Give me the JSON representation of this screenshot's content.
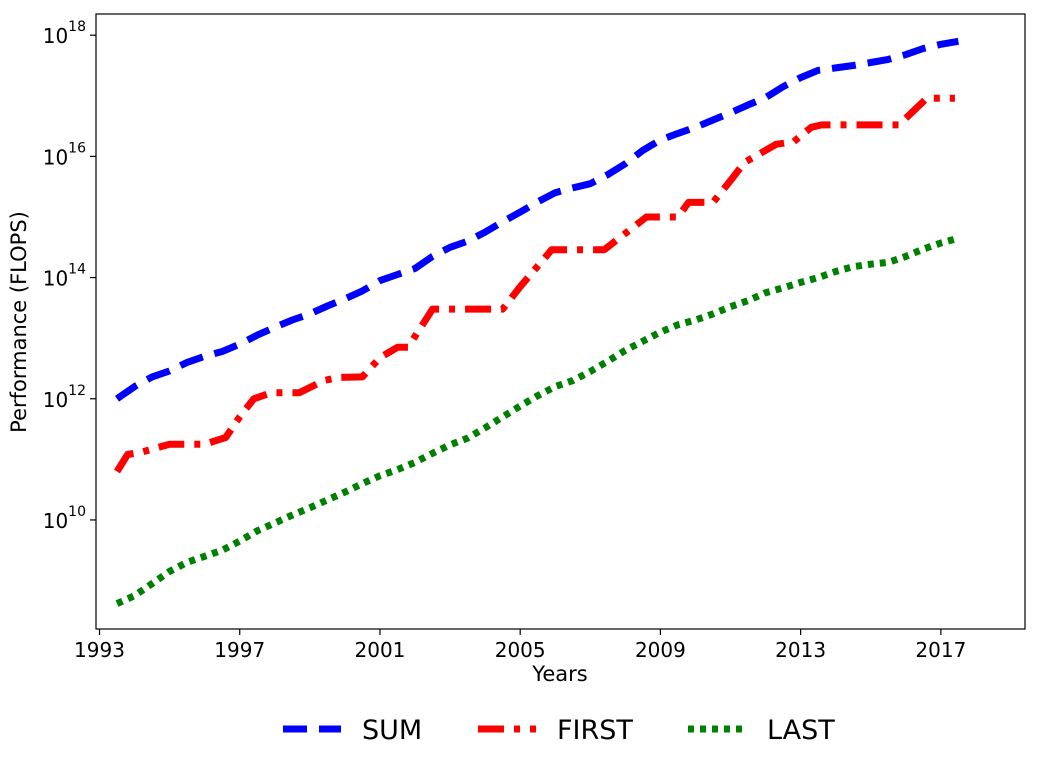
{
  "chart_data": {
    "type": "line",
    "xlabel": "Years",
    "ylabel": "Performance (FLOPS)",
    "y_scale": "log",
    "xlim": [
      1992.9,
      2019.4
    ],
    "ylim_exp": [
      8.2,
      18.35
    ],
    "x_ticks": [
      1993,
      1997,
      2001,
      2005,
      2009,
      2013,
      2017
    ],
    "y_ticks": [
      {
        "base": "10",
        "exp": "10",
        "value_exp": 10
      },
      {
        "base": "10",
        "exp": "12",
        "value_exp": 12
      },
      {
        "base": "10",
        "exp": "14",
        "value_exp": 14
      },
      {
        "base": "10",
        "exp": "16",
        "value_exp": 16
      },
      {
        "base": "10",
        "exp": "18",
        "value_exp": 18
      }
    ],
    "grid": false,
    "legend_position": "bottom-center",
    "series": [
      {
        "name": "SUM",
        "color": "#0000ff",
        "style": "dashed",
        "points_log10": [
          [
            1993.5,
            12.0
          ],
          [
            1994.0,
            12.2
          ],
          [
            1994.5,
            12.36
          ],
          [
            1995.0,
            12.46
          ],
          [
            1995.5,
            12.6
          ],
          [
            1996.0,
            12.7
          ],
          [
            1996.5,
            12.78
          ],
          [
            1997.0,
            12.9
          ],
          [
            1997.5,
            13.05
          ],
          [
            1998.0,
            13.18
          ],
          [
            1998.5,
            13.3
          ],
          [
            1999.0,
            13.4
          ],
          [
            1999.5,
            13.53
          ],
          [
            2000.0,
            13.65
          ],
          [
            2000.5,
            13.78
          ],
          [
            2001.0,
            13.95
          ],
          [
            2001.5,
            14.05
          ],
          [
            2002.0,
            14.15
          ],
          [
            2002.5,
            14.35
          ],
          [
            2003.0,
            14.5
          ],
          [
            2003.5,
            14.6
          ],
          [
            2004.0,
            14.75
          ],
          [
            2004.5,
            14.92
          ],
          [
            2005.0,
            15.08
          ],
          [
            2005.5,
            15.25
          ],
          [
            2006.0,
            15.4
          ],
          [
            2006.5,
            15.48
          ],
          [
            2007.0,
            15.55
          ],
          [
            2007.5,
            15.7
          ],
          [
            2008.0,
            15.88
          ],
          [
            2008.5,
            16.1
          ],
          [
            2009.0,
            16.27
          ],
          [
            2009.5,
            16.38
          ],
          [
            2010.0,
            16.48
          ],
          [
            2010.5,
            16.6
          ],
          [
            2011.0,
            16.72
          ],
          [
            2011.5,
            16.85
          ],
          [
            2012.0,
            16.97
          ],
          [
            2012.5,
            17.15
          ],
          [
            2013.0,
            17.3
          ],
          [
            2013.5,
            17.42
          ],
          [
            2014.0,
            17.46
          ],
          [
            2014.5,
            17.5
          ],
          [
            2015.0,
            17.55
          ],
          [
            2015.5,
            17.6
          ],
          [
            2016.0,
            17.68
          ],
          [
            2016.5,
            17.78
          ],
          [
            2017.0,
            17.85
          ],
          [
            2017.5,
            17.9
          ]
        ]
      },
      {
        "name": "FIRST",
        "color": "#ff0000",
        "style": "dashdot",
        "points_log10": [
          [
            1993.5,
            10.8
          ],
          [
            1993.8,
            11.08
          ],
          [
            1994.2,
            11.12
          ],
          [
            1995.0,
            11.25
          ],
          [
            1996.0,
            11.25
          ],
          [
            1996.6,
            11.36
          ],
          [
            1997.0,
            11.7
          ],
          [
            1997.4,
            12.0
          ],
          [
            1997.9,
            12.1
          ],
          [
            1998.7,
            12.1
          ],
          [
            1999.4,
            12.3
          ],
          [
            1999.8,
            12.35
          ],
          [
            2000.5,
            12.36
          ],
          [
            2001.0,
            12.68
          ],
          [
            2001.5,
            12.85
          ],
          [
            2001.8,
            12.85
          ],
          [
            2002.5,
            13.48
          ],
          [
            2004.5,
            13.48
          ],
          [
            2005.0,
            13.85
          ],
          [
            2005.9,
            14.46
          ],
          [
            2007.4,
            14.46
          ],
          [
            2008.2,
            14.82
          ],
          [
            2008.6,
            15.0
          ],
          [
            2009.5,
            15.0
          ],
          [
            2009.8,
            15.24
          ],
          [
            2010.5,
            15.24
          ],
          [
            2011.0,
            15.6
          ],
          [
            2011.4,
            15.9
          ],
          [
            2011.7,
            16.0
          ],
          [
            2012.3,
            16.2
          ],
          [
            2012.8,
            16.24
          ],
          [
            2013.3,
            16.48
          ],
          [
            2013.6,
            16.52
          ],
          [
            2015.8,
            16.52
          ],
          [
            2016.6,
            16.96
          ],
          [
            2017.4,
            16.96
          ]
        ]
      },
      {
        "name": "LAST",
        "color": "#008000",
        "style": "dotted",
        "points_log10": [
          [
            1993.5,
            8.62
          ],
          [
            1994.0,
            8.75
          ],
          [
            1994.5,
            8.95
          ],
          [
            1995.0,
            9.15
          ],
          [
            1995.5,
            9.3
          ],
          [
            1996.0,
            9.4
          ],
          [
            1996.5,
            9.5
          ],
          [
            1997.0,
            9.65
          ],
          [
            1997.5,
            9.82
          ],
          [
            1998.0,
            9.95
          ],
          [
            1998.5,
            10.08
          ],
          [
            1999.0,
            10.2
          ],
          [
            1999.5,
            10.33
          ],
          [
            2000.0,
            10.46
          ],
          [
            2000.5,
            10.6
          ],
          [
            2001.0,
            10.73
          ],
          [
            2001.5,
            10.83
          ],
          [
            2002.0,
            10.95
          ],
          [
            2002.5,
            11.1
          ],
          [
            2003.0,
            11.24
          ],
          [
            2003.5,
            11.35
          ],
          [
            2004.0,
            11.52
          ],
          [
            2004.5,
            11.7
          ],
          [
            2005.0,
            11.88
          ],
          [
            2005.5,
            12.05
          ],
          [
            2006.0,
            12.2
          ],
          [
            2006.5,
            12.3
          ],
          [
            2007.0,
            12.45
          ],
          [
            2007.5,
            12.62
          ],
          [
            2008.0,
            12.8
          ],
          [
            2008.5,
            12.95
          ],
          [
            2009.0,
            13.1
          ],
          [
            2009.5,
            13.22
          ],
          [
            2010.0,
            13.3
          ],
          [
            2010.5,
            13.4
          ],
          [
            2011.0,
            13.52
          ],
          [
            2011.5,
            13.62
          ],
          [
            2012.0,
            13.75
          ],
          [
            2012.5,
            13.83
          ],
          [
            2013.0,
            13.92
          ],
          [
            2013.5,
            14.0
          ],
          [
            2014.0,
            14.1
          ],
          [
            2014.5,
            14.18
          ],
          [
            2015.0,
            14.22
          ],
          [
            2015.5,
            14.25
          ],
          [
            2016.0,
            14.35
          ],
          [
            2016.5,
            14.47
          ],
          [
            2017.0,
            14.57
          ],
          [
            2017.5,
            14.65
          ]
        ]
      }
    ]
  }
}
